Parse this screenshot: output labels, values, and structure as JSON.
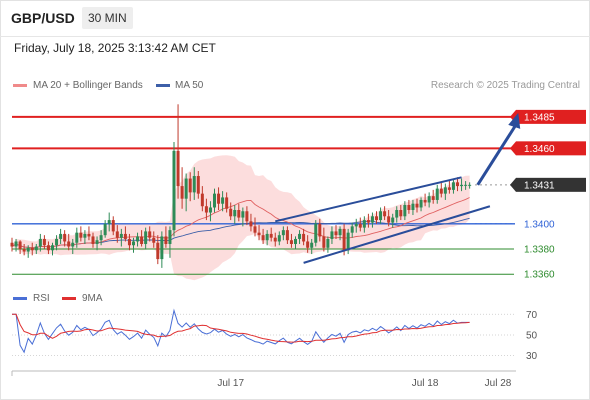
{
  "header": {
    "symbol": "GBP/USD",
    "timeframe": "30 MIN"
  },
  "datetime": "Friday, July 18, 2025 3:13:42 AM CET",
  "legend": {
    "ma20": "MA 20 + Bollinger Bands",
    "ma50": "MA 50",
    "rsi": "RSI",
    "rsi9": "9MA"
  },
  "credit": "Research © 2025 Trading Central",
  "colors": {
    "resistance": "#e02020",
    "current": "#333333",
    "support1": "#2f62d6",
    "support2": "#2e8b2e",
    "ma20": "#e06060",
    "ma50": "#3d5fa8",
    "band": "#fbd4d4",
    "up_candle": "#2e8b57",
    "down_candle": "#c0392b",
    "channel": "#2a4d9a",
    "rsi": "#4a6fd6",
    "rsi9": "#e03030"
  },
  "chart_data": {
    "type": "candlestick",
    "ylim": [
      1.3353,
      1.35
    ],
    "price_levels": [
      {
        "label": "1.3485",
        "value": 1.3485,
        "kind": "resistance"
      },
      {
        "label": "1.3460",
        "value": 1.346,
        "kind": "resistance"
      },
      {
        "label": "1.3431",
        "value": 1.3431,
        "kind": "current"
      },
      {
        "label": "1.3400",
        "value": 1.34,
        "kind": "pivot"
      },
      {
        "label": "1.3380",
        "value": 1.338,
        "kind": "support"
      },
      {
        "label": "1.3360",
        "value": 1.336,
        "kind": "support"
      }
    ],
    "x_ticks": [
      {
        "label": "Jul 17",
        "bar": 54
      },
      {
        "label": "Jul 18",
        "bar": 102
      },
      {
        "label": "Jul 28",
        "bar": 120
      }
    ],
    "n_bars": 114,
    "candles": [
      [
        1.3385,
        1.3389,
        1.3378,
        1.3382
      ],
      [
        1.3382,
        1.3388,
        1.3378,
        1.3386
      ],
      [
        1.3386,
        1.3387,
        1.3376,
        1.338
      ],
      [
        1.338,
        1.3384,
        1.3375,
        1.3378
      ],
      [
        1.3378,
        1.3383,
        1.3373,
        1.3381
      ],
      [
        1.3381,
        1.3385,
        1.3375,
        1.3379
      ],
      [
        1.3379,
        1.3384,
        1.3376,
        1.3382
      ],
      [
        1.3382,
        1.3392,
        1.3378,
        1.3388
      ],
      [
        1.3388,
        1.3391,
        1.338,
        1.3383
      ],
      [
        1.3383,
        1.3386,
        1.3376,
        1.3379
      ],
      [
        1.3379,
        1.3385,
        1.3375,
        1.3383
      ],
      [
        1.3383,
        1.3391,
        1.3379,
        1.3388
      ],
      [
        1.3388,
        1.3396,
        1.3384,
        1.3392
      ],
      [
        1.3392,
        1.3395,
        1.3382,
        1.3386
      ],
      [
        1.3386,
        1.3392,
        1.3379,
        1.3382
      ],
      [
        1.3382,
        1.3388,
        1.3376,
        1.3385
      ],
      [
        1.3385,
        1.3397,
        1.3381,
        1.3393
      ],
      [
        1.3393,
        1.3398,
        1.3386,
        1.3389
      ],
      [
        1.3389,
        1.3395,
        1.3384,
        1.3392
      ],
      [
        1.3392,
        1.3398,
        1.3387,
        1.339
      ],
      [
        1.339,
        1.3393,
        1.3381,
        1.3384
      ],
      [
        1.3384,
        1.339,
        1.3379,
        1.3387
      ],
      [
        1.3387,
        1.3395,
        1.3383,
        1.3391
      ],
      [
        1.3391,
        1.3403,
        1.3389,
        1.34
      ],
      [
        1.34,
        1.3409,
        1.3394,
        1.3403
      ],
      [
        1.3403,
        1.3406,
        1.3391,
        1.3394
      ],
      [
        1.3394,
        1.3399,
        1.3385,
        1.3389
      ],
      [
        1.3389,
        1.3396,
        1.3382,
        1.3392
      ],
      [
        1.3392,
        1.3398,
        1.3386,
        1.3388
      ],
      [
        1.3388,
        1.3392,
        1.3379,
        1.3383
      ],
      [
        1.3383,
        1.3389,
        1.3377,
        1.3386
      ],
      [
        1.3386,
        1.3393,
        1.3382,
        1.339
      ],
      [
        1.339,
        1.3395,
        1.3382,
        1.3384
      ],
      [
        1.3384,
        1.3397,
        1.338,
        1.3394
      ],
      [
        1.3394,
        1.3398,
        1.3386,
        1.3389
      ],
      [
        1.3389,
        1.3394,
        1.3381,
        1.3385
      ],
      [
        1.3385,
        1.3391,
        1.3368,
        1.3372
      ],
      [
        1.3372,
        1.3394,
        1.3365,
        1.339
      ],
      [
        1.339,
        1.3398,
        1.3381,
        1.3384
      ],
      [
        1.3384,
        1.3398,
        1.3373,
        1.3395
      ],
      [
        1.3395,
        1.3465,
        1.339,
        1.3458
      ],
      [
        1.3458,
        1.3495,
        1.342,
        1.343
      ],
      [
        1.343,
        1.3445,
        1.3412,
        1.342
      ],
      [
        1.342,
        1.344,
        1.341,
        1.3436
      ],
      [
        1.3436,
        1.3441,
        1.3418,
        1.3425
      ],
      [
        1.3425,
        1.3445,
        1.3419,
        1.3438
      ],
      [
        1.3438,
        1.3442,
        1.342,
        1.3424
      ],
      [
        1.3424,
        1.343,
        1.341,
        1.3414
      ],
      [
        1.3414,
        1.342,
        1.3403,
        1.3409
      ],
      [
        1.3409,
        1.3418,
        1.3402,
        1.3413
      ],
      [
        1.3413,
        1.3428,
        1.3409,
        1.3424
      ],
      [
        1.3424,
        1.3429,
        1.3411,
        1.3416
      ],
      [
        1.3416,
        1.3426,
        1.341,
        1.3421
      ],
      [
        1.3421,
        1.3425,
        1.3409,
        1.3412
      ],
      [
        1.3412,
        1.3417,
        1.3403,
        1.3406
      ],
      [
        1.3406,
        1.3415,
        1.34,
        1.3411
      ],
      [
        1.3411,
        1.3416,
        1.3402,
        1.3405
      ],
      [
        1.3405,
        1.3413,
        1.3398,
        1.341
      ],
      [
        1.341,
        1.3414,
        1.3399,
        1.3402
      ],
      [
        1.3402,
        1.3408,
        1.3394,
        1.3398
      ],
      [
        1.3398,
        1.3405,
        1.339,
        1.3393
      ],
      [
        1.3393,
        1.3399,
        1.3387,
        1.3391
      ],
      [
        1.3391,
        1.3396,
        1.3384,
        1.3387
      ],
      [
        1.3387,
        1.3395,
        1.3383,
        1.3392
      ],
      [
        1.3392,
        1.3397,
        1.3386,
        1.3389
      ],
      [
        1.3389,
        1.3393,
        1.3382,
        1.3386
      ],
      [
        1.3386,
        1.3394,
        1.3383,
        1.3391
      ],
      [
        1.3391,
        1.3398,
        1.3387,
        1.3395
      ],
      [
        1.3395,
        1.3398,
        1.3384,
        1.3387
      ],
      [
        1.3387,
        1.3392,
        1.3381,
        1.3384
      ],
      [
        1.3384,
        1.339,
        1.338,
        1.3388
      ],
      [
        1.3388,
        1.3395,
        1.3384,
        1.3392
      ],
      [
        1.3392,
        1.3396,
        1.3383,
        1.3386
      ],
      [
        1.3386,
        1.3391,
        1.3377,
        1.3381
      ],
      [
        1.3381,
        1.3388,
        1.3376,
        1.3385
      ],
      [
        1.3385,
        1.3403,
        1.3382,
        1.34
      ],
      [
        1.34,
        1.3404,
        1.3386,
        1.339
      ],
      [
        1.339,
        1.3397,
        1.3378,
        1.3381
      ],
      [
        1.3381,
        1.339,
        1.3377,
        1.3388
      ],
      [
        1.3388,
        1.3398,
        1.3384,
        1.3394
      ],
      [
        1.3394,
        1.3399,
        1.3388,
        1.3391
      ],
      [
        1.3391,
        1.3398,
        1.3387,
        1.3396
      ],
      [
        1.3396,
        1.34,
        1.3375,
        1.3379
      ],
      [
        1.3379,
        1.3396,
        1.3376,
        1.3393
      ],
      [
        1.3393,
        1.3401,
        1.3389,
        1.3398
      ],
      [
        1.3398,
        1.3404,
        1.3393,
        1.34
      ],
      [
        1.34,
        1.3405,
        1.3394,
        1.3397
      ],
      [
        1.3397,
        1.3406,
        1.3393,
        1.3403
      ],
      [
        1.3403,
        1.3408,
        1.3397,
        1.3401
      ],
      [
        1.3401,
        1.3409,
        1.3397,
        1.3406
      ],
      [
        1.3406,
        1.341,
        1.34,
        1.3403
      ],
      [
        1.3403,
        1.3413,
        1.34,
        1.341
      ],
      [
        1.341,
        1.3414,
        1.3403,
        1.3406
      ],
      [
        1.3406,
        1.3411,
        1.3398,
        1.3401
      ],
      [
        1.3401,
        1.3408,
        1.3397,
        1.3405
      ],
      [
        1.3405,
        1.3414,
        1.3401,
        1.3411
      ],
      [
        1.3411,
        1.3415,
        1.3403,
        1.3406
      ],
      [
        1.3406,
        1.3418,
        1.3403,
        1.3415
      ],
      [
        1.3415,
        1.3419,
        1.3408,
        1.3411
      ],
      [
        1.3411,
        1.3419,
        1.3407,
        1.3416
      ],
      [
        1.3416,
        1.342,
        1.3409,
        1.3413
      ],
      [
        1.3413,
        1.3421,
        1.341,
        1.3419
      ],
      [
        1.3419,
        1.3424,
        1.3414,
        1.3417
      ],
      [
        1.3417,
        1.3425,
        1.3413,
        1.3422
      ],
      [
        1.3422,
        1.3427,
        1.3416,
        1.3419
      ],
      [
        1.3419,
        1.3431,
        1.3416,
        1.3428
      ],
      [
        1.3428,
        1.3433,
        1.3421,
        1.3424
      ],
      [
        1.3424,
        1.3432,
        1.3419,
        1.3429
      ],
      [
        1.3429,
        1.3435,
        1.3424,
        1.3427
      ],
      [
        1.3427,
        1.3436,
        1.3424,
        1.3433
      ],
      [
        1.3433,
        1.3437,
        1.3426,
        1.343
      ],
      [
        1.343,
        1.3436,
        1.3426,
        1.3431
      ],
      [
        1.3431,
        1.3434,
        1.3427,
        1.3431
      ],
      [
        1.3431,
        1.3433,
        1.3428,
        1.3431
      ]
    ],
    "channel": {
      "upper": [
        [
          65,
          1.3402
        ],
        [
          111,
          1.3437
        ]
      ],
      "lower": [
        [
          72,
          1.3369
        ],
        [
          118,
          1.3414
        ]
      ]
    },
    "projection": {
      "from": [
        115,
        1.3431
      ],
      "to": [
        125,
        1.3485
      ]
    },
    "rsi": {
      "ylim": [
        20,
        78
      ],
      "levels": [
        {
          "label": "70",
          "value": 70
        },
        {
          "label": "50",
          "value": 50
        },
        {
          "label": "30",
          "value": 30
        }
      ]
    }
  }
}
